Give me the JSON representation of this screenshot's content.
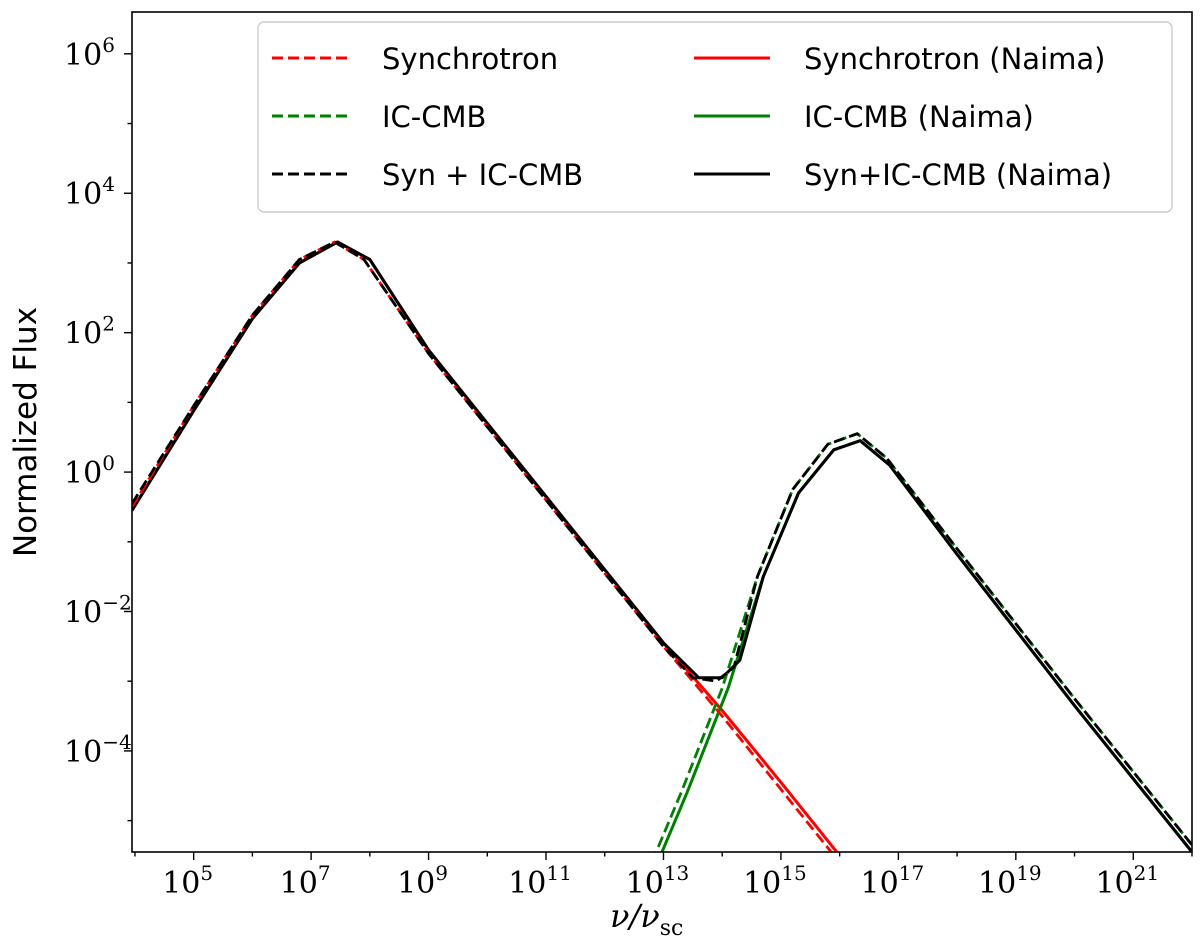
{
  "chart_data": {
    "type": "line",
    "title": "",
    "xlabel": "ν/ν",
    "xlabel_sub": "sc",
    "ylabel": "Normalized Flux",
    "xscale": "log",
    "yscale": "log",
    "xlim_log10": [
      3.95,
      22.0
    ],
    "ylim_log10": [
      -5.45,
      6.6
    ],
    "grid": false,
    "legend_position": "top-right",
    "legend_columns": 2,
    "x_ticks": [
      {
        "base": "10",
        "exp": "5",
        "log": 5
      },
      {
        "base": "10",
        "exp": "7",
        "log": 7
      },
      {
        "base": "10",
        "exp": "9",
        "log": 9
      },
      {
        "base": "10",
        "exp": "11",
        "log": 11
      },
      {
        "base": "10",
        "exp": "13",
        "log": 13
      },
      {
        "base": "10",
        "exp": "15",
        "log": 15
      },
      {
        "base": "10",
        "exp": "17",
        "log": 17
      },
      {
        "base": "10",
        "exp": "19",
        "log": 19
      },
      {
        "base": "10",
        "exp": "21",
        "log": 21
      }
    ],
    "y_ticks": [
      {
        "base": "10",
        "exp": "−4",
        "log": -4
      },
      {
        "base": "10",
        "exp": "−2",
        "log": -2
      },
      {
        "base": "10",
        "exp": "0",
        "log": 0
      },
      {
        "base": "10",
        "exp": "2",
        "log": 2
      },
      {
        "base": "10",
        "exp": "4",
        "log": 4
      },
      {
        "base": "10",
        "exp": "6",
        "log": 6
      }
    ],
    "series": [
      {
        "name": "Synchrotron",
        "color": "#ff0000",
        "dash": "dashed",
        "legend_col": 0,
        "legend_row": 0,
        "points_log10": [
          [
            3.95,
            -0.5
          ],
          [
            5,
            0.95
          ],
          [
            6,
            2.25
          ],
          [
            6.8,
            3.05
          ],
          [
            7.4,
            3.3
          ],
          [
            7.9,
            3.05
          ],
          [
            9,
            1.7
          ],
          [
            11,
            -0.4
          ],
          [
            13,
            -2.5
          ],
          [
            14,
            -3.5
          ],
          [
            15,
            -4.55
          ],
          [
            16,
            -5.6
          ]
        ]
      },
      {
        "name": "IC-CMB",
        "color": "#008000",
        "dash": "dashed",
        "legend_col": 0,
        "legend_row": 1,
        "points_log10": [
          [
            12.7,
            -5.8
          ],
          [
            13.3,
            -4.6
          ],
          [
            14,
            -3.1
          ],
          [
            14.6,
            -1.5
          ],
          [
            15.2,
            -0.25
          ],
          [
            15.8,
            0.4
          ],
          [
            16.3,
            0.55
          ],
          [
            16.8,
            0.2
          ],
          [
            18,
            -1.1
          ],
          [
            20,
            -3.25
          ],
          [
            22,
            -5.35
          ]
        ]
      },
      {
        "name": "Syn + IC-CMB",
        "color": "#000000",
        "dash": "dashed",
        "legend_col": 0,
        "legend_row": 2,
        "points_log10": [
          [
            3.95,
            -0.45
          ],
          [
            5,
            0.95
          ],
          [
            6,
            2.25
          ],
          [
            6.8,
            3.05
          ],
          [
            7.4,
            3.3
          ],
          [
            7.9,
            3.05
          ],
          [
            9,
            1.7
          ],
          [
            11,
            -0.4
          ],
          [
            13,
            -2.5
          ],
          [
            13.5,
            -2.95
          ],
          [
            13.9,
            -3.0
          ],
          [
            14.2,
            -2.8
          ],
          [
            14.6,
            -1.5
          ],
          [
            15.2,
            -0.25
          ],
          [
            15.8,
            0.4
          ],
          [
            16.3,
            0.55
          ],
          [
            16.8,
            0.2
          ],
          [
            18,
            -1.1
          ],
          [
            20,
            -3.25
          ],
          [
            22,
            -5.35
          ]
        ]
      },
      {
        "name": "Synchrotron (Naima)",
        "color": "#ff0000",
        "dash": "solid",
        "legend_col": 1,
        "legend_row": 0,
        "points_log10": [
          [
            3.95,
            -0.55
          ],
          [
            5,
            0.88
          ],
          [
            6,
            2.2
          ],
          [
            6.8,
            3.0
          ],
          [
            7.45,
            3.3
          ],
          [
            8,
            3.05
          ],
          [
            9,
            1.75
          ],
          [
            11,
            -0.35
          ],
          [
            13,
            -2.45
          ],
          [
            14,
            -3.42
          ],
          [
            15,
            -4.45
          ],
          [
            16,
            -5.5
          ]
        ]
      },
      {
        "name": "IC-CMB (Naima)",
        "color": "#008000",
        "dash": "solid",
        "legend_col": 1,
        "legend_row": 1,
        "points_log10": [
          [
            12.8,
            -5.8
          ],
          [
            13.4,
            -4.6
          ],
          [
            14.1,
            -3.1
          ],
          [
            14.7,
            -1.5
          ],
          [
            15.3,
            -0.3
          ],
          [
            15.9,
            0.32
          ],
          [
            16.35,
            0.45
          ],
          [
            16.85,
            0.1
          ],
          [
            18,
            -1.18
          ],
          [
            20,
            -3.35
          ],
          [
            22,
            -5.45
          ]
        ]
      },
      {
        "name": "Syn+IC-CMB (Naima)",
        "color": "#000000",
        "dash": "solid",
        "legend_col": 1,
        "legend_row": 2,
        "points_log10": [
          [
            3.95,
            -0.55
          ],
          [
            5,
            0.88
          ],
          [
            6,
            2.2
          ],
          [
            6.8,
            3.0
          ],
          [
            7.45,
            3.3
          ],
          [
            8,
            3.05
          ],
          [
            9,
            1.75
          ],
          [
            11,
            -0.35
          ],
          [
            13,
            -2.45
          ],
          [
            13.6,
            -2.95
          ],
          [
            14,
            -2.95
          ],
          [
            14.3,
            -2.7
          ],
          [
            14.7,
            -1.5
          ],
          [
            15.3,
            -0.3
          ],
          [
            15.9,
            0.32
          ],
          [
            16.35,
            0.45
          ],
          [
            16.85,
            0.1
          ],
          [
            18,
            -1.18
          ],
          [
            20,
            -3.35
          ],
          [
            22,
            -5.45
          ]
        ]
      }
    ]
  }
}
